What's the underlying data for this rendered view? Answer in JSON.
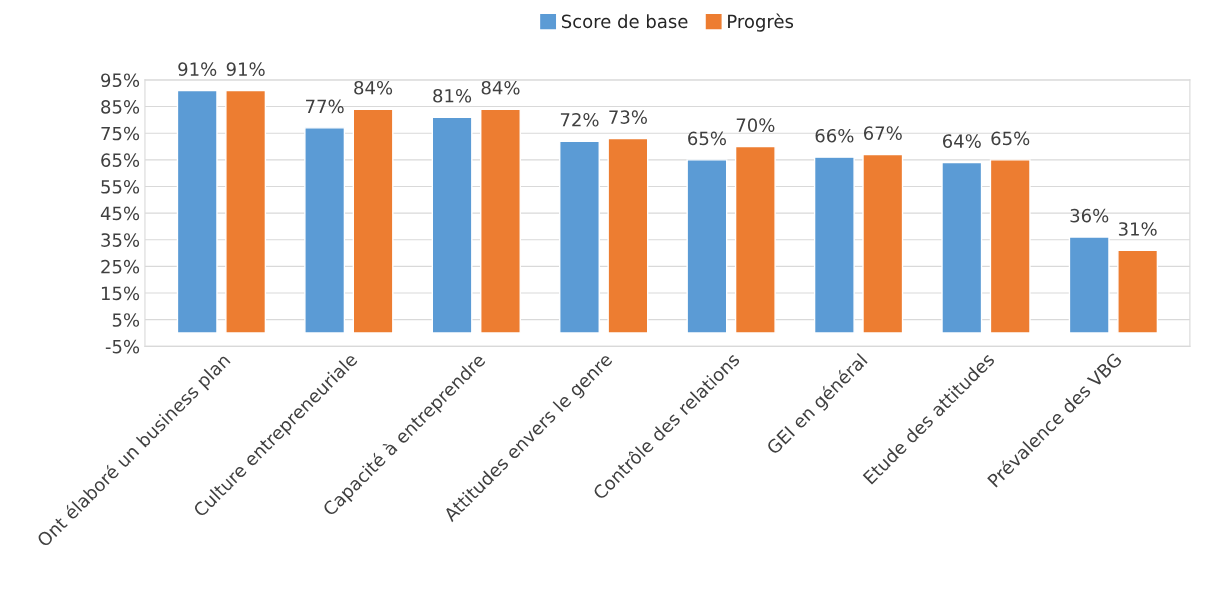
{
  "chart_data": {
    "type": "bar",
    "categories": [
      "Ont élaboré un business plan",
      "Culture entrepreneuriale",
      "Capacité à entreprendre",
      "Attitudes envers le genre",
      "Contrôle des relations",
      "GEI en général",
      "Etude des attitudes",
      "Prévalence des VBG"
    ],
    "series": [
      {
        "name": "Score de base",
        "color": "#5b9bd5",
        "values": [
          91,
          77,
          81,
          72,
          65,
          66,
          64,
          36
        ],
        "value_labels": [
          "91%",
          "77%",
          "81%",
          "72%",
          "65%",
          "66%",
          "64%",
          "36%"
        ]
      },
      {
        "name": "Progrès",
        "color": "#ed7d31",
        "values": [
          91,
          84,
          84,
          73,
          70,
          67,
          65,
          31
        ],
        "value_labels": [
          "91%",
          "84%",
          "84%",
          "73%",
          "70%",
          "67%",
          "65%",
          "31%"
        ]
      }
    ],
    "ylim": [
      -5,
      95
    ],
    "yticks": [
      {
        "value": -5,
        "label": "-5%"
      },
      {
        "value": 5,
        "label": "5%"
      },
      {
        "value": 15,
        "label": "15%"
      },
      {
        "value": 25,
        "label": "25%"
      },
      {
        "value": 35,
        "label": "35%"
      },
      {
        "value": 45,
        "label": "45%"
      },
      {
        "value": 55,
        "label": "55%"
      },
      {
        "value": 65,
        "label": "65%"
      },
      {
        "value": 75,
        "label": "75%"
      },
      {
        "value": 85,
        "label": "85%"
      },
      {
        "value": 95,
        "label": "95%"
      }
    ],
    "grid": "y",
    "legend": "top"
  }
}
